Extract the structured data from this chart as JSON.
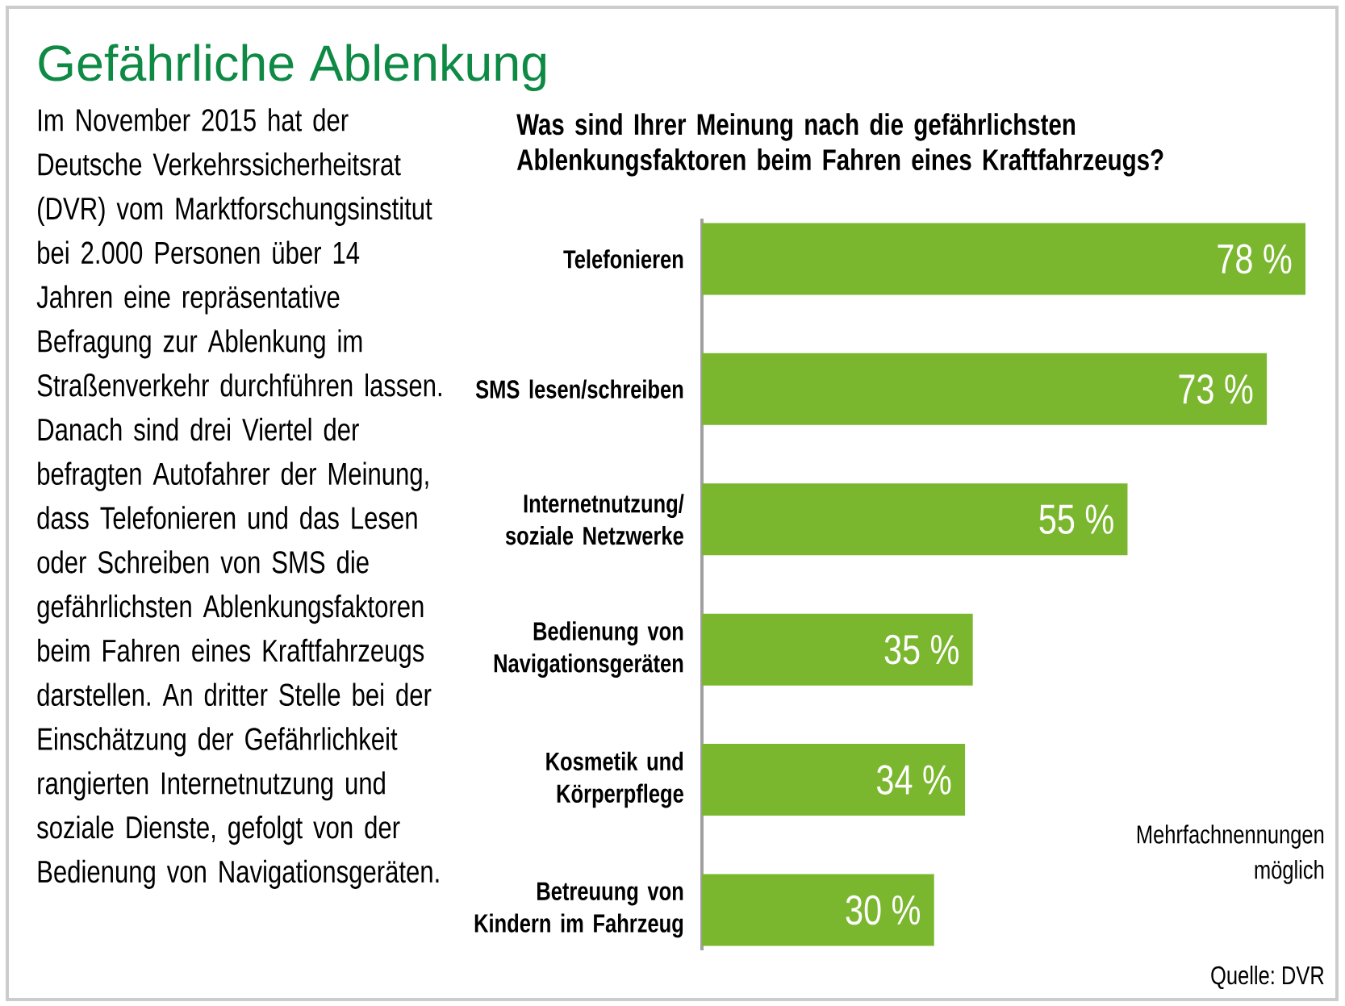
{
  "chart_data": {
    "type": "bar",
    "orientation": "horizontal",
    "title": "Gefährliche Ablenkung",
    "subtitle": "Was sind Ihrer Meinung nach die gefährlichsten Ablenkungsfaktoren beim Fahren eines Kraftfahrzeugs?",
    "categories": [
      "Telefonieren",
      "SMS lesen/schreiben",
      "Internetnutzung/soziale Netzwerke",
      "Bedienung von Navigationsgeräten",
      "Kosmetik und Körperpflege",
      "Betreuung von Kindern im Fahrzeug"
    ],
    "values": [
      78,
      73,
      55,
      35,
      34,
      30
    ],
    "value_labels": [
      "78 %",
      "73 %",
      "55 %",
      "35 %",
      "34 %",
      "30 %"
    ],
    "color": "#7ab72e",
    "annotations": [
      "Im November 2015 hat der Deutsche Verkehrssicherheitsrat (DVR) vom Marktforschungsinstitut bei 2.000 Personen über 14 Jahren eine repräsentative Befragung zur Ablenkung im Straßenverkehr durchführen lassen. Danach sind drei Viertel der befragten Autofahrer der Meinung, dass Telefonieren und das Lesen oder Schreiben von SMS die gefährlichsten Ablenkungsfaktoren beim Fahren eines Kraftfahrzeugs darstellen. An dritter Stelle bei der Einschätzung der Gefährlichkeit rangierten Internetnutzung und soziale Dienste, gefolgt von der Bedienung von Navigationsgeräten.",
      "Mehrfachnennungen möglich",
      "Quelle: DVR"
    ]
  }
}
